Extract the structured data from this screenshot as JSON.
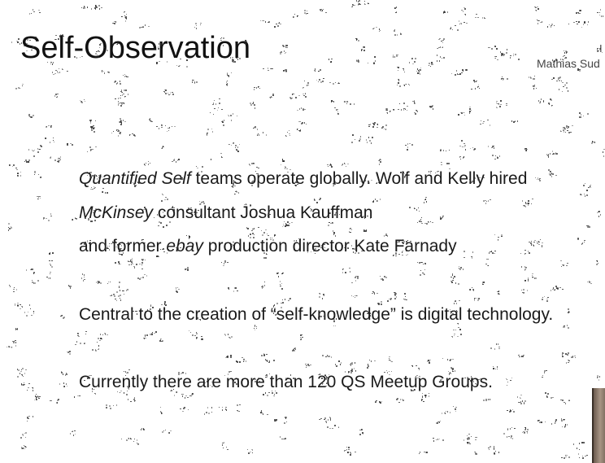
{
  "slide": {
    "title": "Self-Observation",
    "author_name": "Mathias Sud",
    "author_mark": "I"
  },
  "body": {
    "line1": {
      "italic": "Quantified Self",
      "text": " teams operate globally.  Wolf and Kelly hired"
    },
    "line2": {
      "italic": "McKinsey",
      "text": " consultant Joshua Kauffman"
    },
    "line3": {
      "before": "and former ",
      "italic": "ebay",
      "after": " production director Kate Farnady"
    },
    "line4": {
      "text": "Central to the creation of “self-knowledge” is digital technology."
    },
    "line5": {
      "text": "Currently there are more than 120 QS Meetup Groups."
    }
  },
  "colors": {
    "background": "#ffffff",
    "text": "#1a1a1a",
    "noise": "#2b2b2b"
  }
}
